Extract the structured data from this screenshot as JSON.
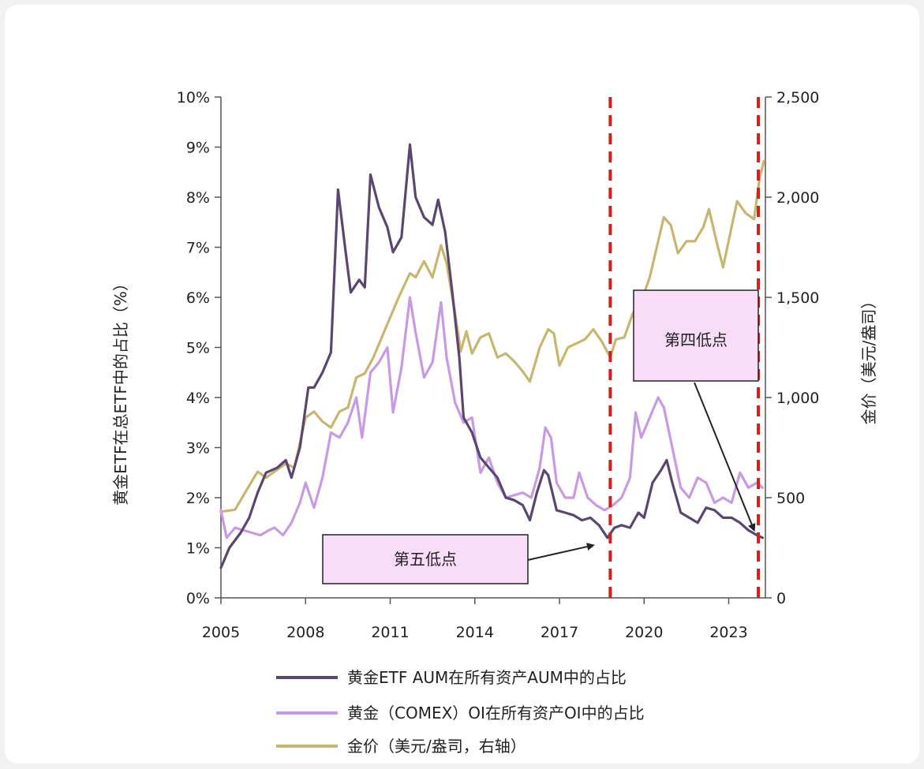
{
  "chart_data": {
    "type": "line",
    "ylabel_left": "黄金ETF在总ETF中的占比（%）",
    "ylabel_right": "金价（美元/盎司）",
    "x_range": [
      2005.0,
      2024.3
    ],
    "x_ticks": [
      {
        "value": 2005,
        "label": "2005"
      },
      {
        "value": 2008,
        "label": "2008"
      },
      {
        "value": 2011,
        "label": "2011"
      },
      {
        "value": 2014,
        "label": "2014"
      },
      {
        "value": 2017,
        "label": "2017"
      },
      {
        "value": 2020,
        "label": "2020"
      },
      {
        "value": 2023,
        "label": "2023"
      }
    ],
    "y_left": {
      "range": [
        0,
        10
      ],
      "ticks": [
        {
          "value": 0,
          "label": "0%"
        },
        {
          "value": 1,
          "label": "1%"
        },
        {
          "value": 2,
          "label": "2%"
        },
        {
          "value": 3,
          "label": "3%"
        },
        {
          "value": 4,
          "label": "4%"
        },
        {
          "value": 5,
          "label": "5%"
        },
        {
          "value": 6,
          "label": "6%"
        },
        {
          "value": 7,
          "label": "7%"
        },
        {
          "value": 8,
          "label": "8%"
        },
        {
          "value": 9,
          "label": "9%"
        },
        {
          "value": 10,
          "label": "10%"
        }
      ]
    },
    "y_right": {
      "range": [
        0,
        2500
      ],
      "ticks": [
        {
          "value": 0,
          "label": "0"
        },
        {
          "value": 500,
          "label": "500"
        },
        {
          "value": 1000,
          "label": "1,000"
        },
        {
          "value": 1500,
          "label": "1,500"
        },
        {
          "value": 2000,
          "label": "2,000"
        },
        {
          "value": 2500,
          "label": "2,500"
        }
      ]
    },
    "series": [
      {
        "name": "黄金ETF AUM在所有资产AUM中的占比",
        "axis": "left",
        "color": "#5b4670",
        "points": [
          [
            2005.0,
            0.6
          ],
          [
            2005.3,
            1.0
          ],
          [
            2005.7,
            1.3
          ],
          [
            2006.0,
            1.6
          ],
          [
            2006.3,
            2.1
          ],
          [
            2006.6,
            2.5
          ],
          [
            2007.0,
            2.6
          ],
          [
            2007.3,
            2.75
          ],
          [
            2007.5,
            2.4
          ],
          [
            2007.8,
            3.0
          ],
          [
            2008.1,
            4.2
          ],
          [
            2008.3,
            4.2
          ],
          [
            2008.6,
            4.5
          ],
          [
            2008.9,
            4.9
          ],
          [
            2009.15,
            8.15
          ],
          [
            2009.4,
            7.0
          ],
          [
            2009.6,
            6.1
          ],
          [
            2009.9,
            6.35
          ],
          [
            2010.1,
            6.2
          ],
          [
            2010.3,
            8.45
          ],
          [
            2010.6,
            7.8
          ],
          [
            2010.9,
            7.4
          ],
          [
            2011.1,
            6.9
          ],
          [
            2011.4,
            7.2
          ],
          [
            2011.7,
            9.05
          ],
          [
            2011.9,
            8.0
          ],
          [
            2012.2,
            7.6
          ],
          [
            2012.5,
            7.45
          ],
          [
            2012.7,
            7.95
          ],
          [
            2012.95,
            7.3
          ],
          [
            2013.2,
            6.1
          ],
          [
            2013.45,
            4.8
          ],
          [
            2013.6,
            3.6
          ],
          [
            2013.9,
            3.3
          ],
          [
            2014.2,
            2.8
          ],
          [
            2014.5,
            2.6
          ],
          [
            2014.8,
            2.4
          ],
          [
            2015.1,
            2.0
          ],
          [
            2015.4,
            1.95
          ],
          [
            2015.7,
            1.85
          ],
          [
            2015.95,
            1.55
          ],
          [
            2016.2,
            2.1
          ],
          [
            2016.45,
            2.55
          ],
          [
            2016.6,
            2.45
          ],
          [
            2016.9,
            1.75
          ],
          [
            2017.2,
            1.7
          ],
          [
            2017.5,
            1.65
          ],
          [
            2017.8,
            1.55
          ],
          [
            2018.1,
            1.6
          ],
          [
            2018.4,
            1.45
          ],
          [
            2018.7,
            1.2
          ],
          [
            2018.95,
            1.4
          ],
          [
            2019.2,
            1.45
          ],
          [
            2019.5,
            1.4
          ],
          [
            2019.8,
            1.7
          ],
          [
            2020.0,
            1.6
          ],
          [
            2020.3,
            2.3
          ],
          [
            2020.6,
            2.55
          ],
          [
            2020.8,
            2.75
          ],
          [
            2021.0,
            2.3
          ],
          [
            2021.3,
            1.7
          ],
          [
            2021.6,
            1.6
          ],
          [
            2021.9,
            1.5
          ],
          [
            2022.2,
            1.8
          ],
          [
            2022.5,
            1.75
          ],
          [
            2022.8,
            1.6
          ],
          [
            2023.1,
            1.6
          ],
          [
            2023.4,
            1.5
          ],
          [
            2023.7,
            1.35
          ],
          [
            2024.0,
            1.25
          ],
          [
            2024.2,
            1.2
          ]
        ]
      },
      {
        "name": "黄金（COMEX）OI在所有资产OI中的占比",
        "axis": "left",
        "color": "#c89ae6",
        "points": [
          [
            2005.0,
            1.75
          ],
          [
            2005.2,
            1.2
          ],
          [
            2005.5,
            1.4
          ],
          [
            2005.8,
            1.35
          ],
          [
            2006.1,
            1.3
          ],
          [
            2006.4,
            1.25
          ],
          [
            2006.7,
            1.35
          ],
          [
            2006.9,
            1.4
          ],
          [
            2007.2,
            1.25
          ],
          [
            2007.5,
            1.5
          ],
          [
            2007.8,
            1.9
          ],
          [
            2008.0,
            2.3
          ],
          [
            2008.3,
            1.8
          ],
          [
            2008.6,
            2.4
          ],
          [
            2008.9,
            3.3
          ],
          [
            2009.2,
            3.2
          ],
          [
            2009.5,
            3.5
          ],
          [
            2009.8,
            4.0
          ],
          [
            2010.0,
            3.2
          ],
          [
            2010.3,
            4.5
          ],
          [
            2010.6,
            4.7
          ],
          [
            2010.9,
            5.0
          ],
          [
            2011.1,
            3.7
          ],
          [
            2011.4,
            4.6
          ],
          [
            2011.7,
            6.0
          ],
          [
            2011.9,
            5.3
          ],
          [
            2012.2,
            4.4
          ],
          [
            2012.5,
            4.7
          ],
          [
            2012.8,
            5.9
          ],
          [
            2013.0,
            4.8
          ],
          [
            2013.3,
            3.9
          ],
          [
            2013.6,
            3.5
          ],
          [
            2013.9,
            3.6
          ],
          [
            2014.2,
            2.5
          ],
          [
            2014.5,
            2.8
          ],
          [
            2014.8,
            2.3
          ],
          [
            2015.1,
            2.0
          ],
          [
            2015.4,
            2.05
          ],
          [
            2015.7,
            2.1
          ],
          [
            2016.0,
            2.0
          ],
          [
            2016.3,
            2.6
          ],
          [
            2016.5,
            3.4
          ],
          [
            2016.7,
            3.2
          ],
          [
            2016.9,
            2.3
          ],
          [
            2017.2,
            2.0
          ],
          [
            2017.5,
            2.0
          ],
          [
            2017.7,
            2.5
          ],
          [
            2018.0,
            2.0
          ],
          [
            2018.3,
            1.85
          ],
          [
            2018.6,
            1.75
          ],
          [
            2018.9,
            1.85
          ],
          [
            2019.2,
            2.0
          ],
          [
            2019.5,
            2.4
          ],
          [
            2019.7,
            3.7
          ],
          [
            2019.9,
            3.2
          ],
          [
            2020.2,
            3.6
          ],
          [
            2020.5,
            4.0
          ],
          [
            2020.7,
            3.8
          ],
          [
            2021.0,
            3.0
          ],
          [
            2021.3,
            2.2
          ],
          [
            2021.6,
            2.0
          ],
          [
            2021.9,
            2.4
          ],
          [
            2022.2,
            2.3
          ],
          [
            2022.5,
            1.9
          ],
          [
            2022.8,
            2.0
          ],
          [
            2023.1,
            1.9
          ],
          [
            2023.4,
            2.5
          ],
          [
            2023.7,
            2.2
          ],
          [
            2024.0,
            2.3
          ],
          [
            2024.2,
            2.2
          ]
        ]
      },
      {
        "name": "金价（美元/盎司，右轴）",
        "axis": "right",
        "color": "#c8b56e",
        "points": [
          [
            2005.0,
            430
          ],
          [
            2005.5,
            440
          ],
          [
            2006.0,
            560
          ],
          [
            2006.3,
            630
          ],
          [
            2006.6,
            600
          ],
          [
            2007.0,
            640
          ],
          [
            2007.3,
            670
          ],
          [
            2007.6,
            650
          ],
          [
            2008.0,
            900
          ],
          [
            2008.3,
            930
          ],
          [
            2008.6,
            880
          ],
          [
            2008.9,
            850
          ],
          [
            2009.2,
            930
          ],
          [
            2009.5,
            950
          ],
          [
            2009.8,
            1100
          ],
          [
            2010.1,
            1120
          ],
          [
            2010.4,
            1200
          ],
          [
            2010.7,
            1300
          ],
          [
            2011.0,
            1400
          ],
          [
            2011.3,
            1500
          ],
          [
            2011.7,
            1620
          ],
          [
            2011.9,
            1600
          ],
          [
            2012.2,
            1680
          ],
          [
            2012.5,
            1600
          ],
          [
            2012.8,
            1760
          ],
          [
            2013.0,
            1670
          ],
          [
            2013.3,
            1420
          ],
          [
            2013.5,
            1230
          ],
          [
            2013.7,
            1330
          ],
          [
            2013.9,
            1220
          ],
          [
            2014.2,
            1300
          ],
          [
            2014.5,
            1320
          ],
          [
            2014.8,
            1200
          ],
          [
            2015.1,
            1220
          ],
          [
            2015.4,
            1180
          ],
          [
            2015.7,
            1130
          ],
          [
            2015.95,
            1080
          ],
          [
            2016.3,
            1250
          ],
          [
            2016.6,
            1340
          ],
          [
            2016.8,
            1320
          ],
          [
            2017.0,
            1160
          ],
          [
            2017.3,
            1250
          ],
          [
            2017.6,
            1270
          ],
          [
            2017.9,
            1290
          ],
          [
            2018.2,
            1340
          ],
          [
            2018.5,
            1280
          ],
          [
            2018.8,
            1200
          ],
          [
            2019.0,
            1290
          ],
          [
            2019.3,
            1300
          ],
          [
            2019.6,
            1420
          ],
          [
            2019.9,
            1480
          ],
          [
            2020.2,
            1600
          ],
          [
            2020.5,
            1780
          ],
          [
            2020.7,
            1900
          ],
          [
            2020.95,
            1860
          ],
          [
            2021.2,
            1720
          ],
          [
            2021.5,
            1780
          ],
          [
            2021.8,
            1780
          ],
          [
            2022.1,
            1850
          ],
          [
            2022.3,
            1940
          ],
          [
            2022.6,
            1760
          ],
          [
            2022.8,
            1650
          ],
          [
            2023.1,
            1850
          ],
          [
            2023.3,
            1980
          ],
          [
            2023.6,
            1920
          ],
          [
            2023.9,
            1890
          ],
          [
            2024.1,
            2100
          ],
          [
            2024.25,
            2180
          ]
        ]
      }
    ],
    "vlines": [
      {
        "x": 2018.8,
        "color": "#d0211c"
      },
      {
        "x": 2024.05,
        "color": "#d0211c"
      }
    ],
    "callouts": [
      {
        "text": "第五低点",
        "fill": "#f8dcf8",
        "target": {
          "x": 2018.2,
          "y_left": 1.05
        }
      },
      {
        "text": "第四低点",
        "fill": "#f8dcf8",
        "target": {
          "x": 2023.9,
          "y_left": 1.35
        }
      }
    ],
    "legend": {
      "placement": "bottom",
      "items": [
        {
          "label": "黄金ETF AUM在所有资产AUM中的占比",
          "color": "#5b4670"
        },
        {
          "label": "黄金（COMEX）OI在所有资产OI中的占比",
          "color": "#c89ae6"
        },
        {
          "label": "金价（美元/盎司，右轴）",
          "color": "#c8b56e"
        }
      ]
    }
  }
}
